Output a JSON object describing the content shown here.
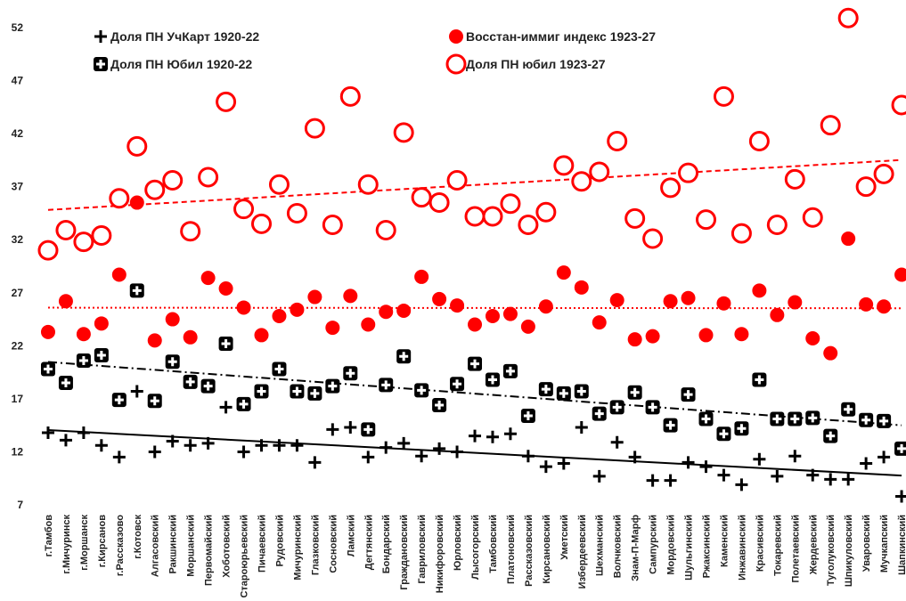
{
  "chart_data": {
    "type": "scatter-categories",
    "categories": [
      "г.Тамбов",
      "г.Мичуринск",
      "г.Моршанск",
      "г.Кирсанов",
      "г.Рассказово",
      "г.Котовск",
      "Алгасовский",
      "Ракшинский",
      "Моршанский",
      "Первомайский",
      "Хоботовский",
      "Староюрьевский",
      "Пичаевский",
      "Рудовский",
      "Мичуринский",
      "Глазковский",
      "Сосновский",
      "Ламский",
      "Дегтянский",
      "Бондарский",
      "Граждановский",
      "Гавриловский",
      "Никифоровский",
      "Юрловский",
      "Лысогорский",
      "Тамбовский",
      "Платоновский",
      "Рассказовский",
      "Кирсановский",
      "Уметский",
      "Избердеевский",
      "Шехманский",
      "Волчковский",
      "Знам-П-Марф",
      "Сампурский",
      "Мордовский",
      "Шульгинский",
      "Ржаксинский",
      "Каменский",
      "Инжавинский",
      "Красивский",
      "Токаревский",
      "Полетаевский",
      "Жердевский",
      "Туголуковский",
      "Шпикуловский",
      "Уваровский",
      "Мучкапский",
      "Шапкинский"
    ],
    "series": [
      {
        "name": "Доля ПН УчКарт 1920-22",
        "color": "#000000",
        "marker": "plus",
        "trendline": "solid",
        "values": [
          13.8,
          13.1,
          13.8,
          12.6,
          11.5,
          17.7,
          12.0,
          13.0,
          12.6,
          12.8,
          16.2,
          12.0,
          12.6,
          12.6,
          12.6,
          11.0,
          14.1,
          14.3,
          11.5,
          12.4,
          12.8,
          11.6,
          12.3,
          12.0,
          13.5,
          13.4,
          13.7,
          11.6,
          10.6,
          10.9,
          14.3,
          9.7,
          12.9,
          11.5,
          9.3,
          9.3,
          11.0,
          10.6,
          9.8,
          8.9,
          11.3,
          9.7,
          11.6,
          9.8,
          9.4,
          9.4,
          10.9,
          11.5,
          7.8
        ]
      },
      {
        "name": "Восстан-иммиг индекс 1923-27",
        "color": "#ff0000",
        "marker": "filled-circle",
        "trendline": "dotted",
        "values": [
          23.3,
          26.2,
          23.1,
          24.1,
          28.7,
          35.5,
          22.5,
          24.5,
          22.8,
          28.4,
          27.4,
          25.6,
          23.0,
          24.8,
          25.4,
          26.6,
          23.7,
          26.7,
          24.0,
          25.2,
          25.3,
          28.5,
          26.4,
          25.8,
          24.0,
          24.8,
          25.0,
          23.8,
          25.7,
          28.9,
          27.5,
          24.2,
          26.3,
          22.6,
          22.9,
          26.2,
          26.5,
          23.0,
          26.0,
          23.1,
          27.2,
          24.9,
          26.1,
          22.7,
          21.3,
          32.1,
          25.9,
          25.7,
          28.7
        ]
      },
      {
        "name": "Доля ПН Юбил 1920-22",
        "color": "#000000",
        "marker": "boxed-plus",
        "trendline": "dash-dot",
        "values": [
          19.8,
          18.5,
          20.6,
          21.1,
          16.9,
          27.2,
          16.8,
          20.5,
          18.6,
          18.2,
          22.2,
          16.5,
          17.7,
          19.8,
          17.7,
          17.5,
          18.2,
          19.4,
          14.1,
          18.3,
          21.0,
          17.8,
          16.4,
          18.4,
          20.3,
          18.8,
          19.6,
          15.4,
          17.9,
          17.5,
          17.7,
          15.6,
          16.2,
          17.6,
          16.2,
          14.5,
          17.4,
          15.1,
          13.7,
          14.2,
          18.8,
          15.1,
          15.1,
          15.2,
          13.5,
          16.0,
          15.0,
          14.9,
          12.3
        ]
      },
      {
        "name": "Доля ПН юбил 1923-27",
        "color": "#ff0000",
        "marker": "open-circle",
        "trendline": "dashed",
        "values": [
          31.0,
          32.9,
          31.8,
          32.4,
          35.9,
          40.8,
          36.7,
          37.6,
          32.8,
          37.9,
          45.0,
          34.9,
          33.5,
          37.2,
          34.5,
          42.5,
          33.4,
          45.5,
          37.2,
          32.9,
          42.1,
          36.0,
          35.5,
          37.6,
          34.2,
          34.2,
          35.4,
          33.4,
          34.6,
          39.0,
          37.5,
          38.4,
          41.3,
          34.0,
          32.1,
          36.9,
          38.3,
          33.9,
          45.5,
          32.6,
          41.3,
          33.4,
          37.7,
          34.1,
          42.8,
          52.9,
          37.0,
          38.2,
          44.7
        ]
      }
    ],
    "ylim": [
      7,
      52
    ],
    "yticks": [
      7,
      12,
      17,
      22,
      27,
      32,
      37,
      42,
      47,
      52
    ],
    "grid": false,
    "legend": "top"
  }
}
